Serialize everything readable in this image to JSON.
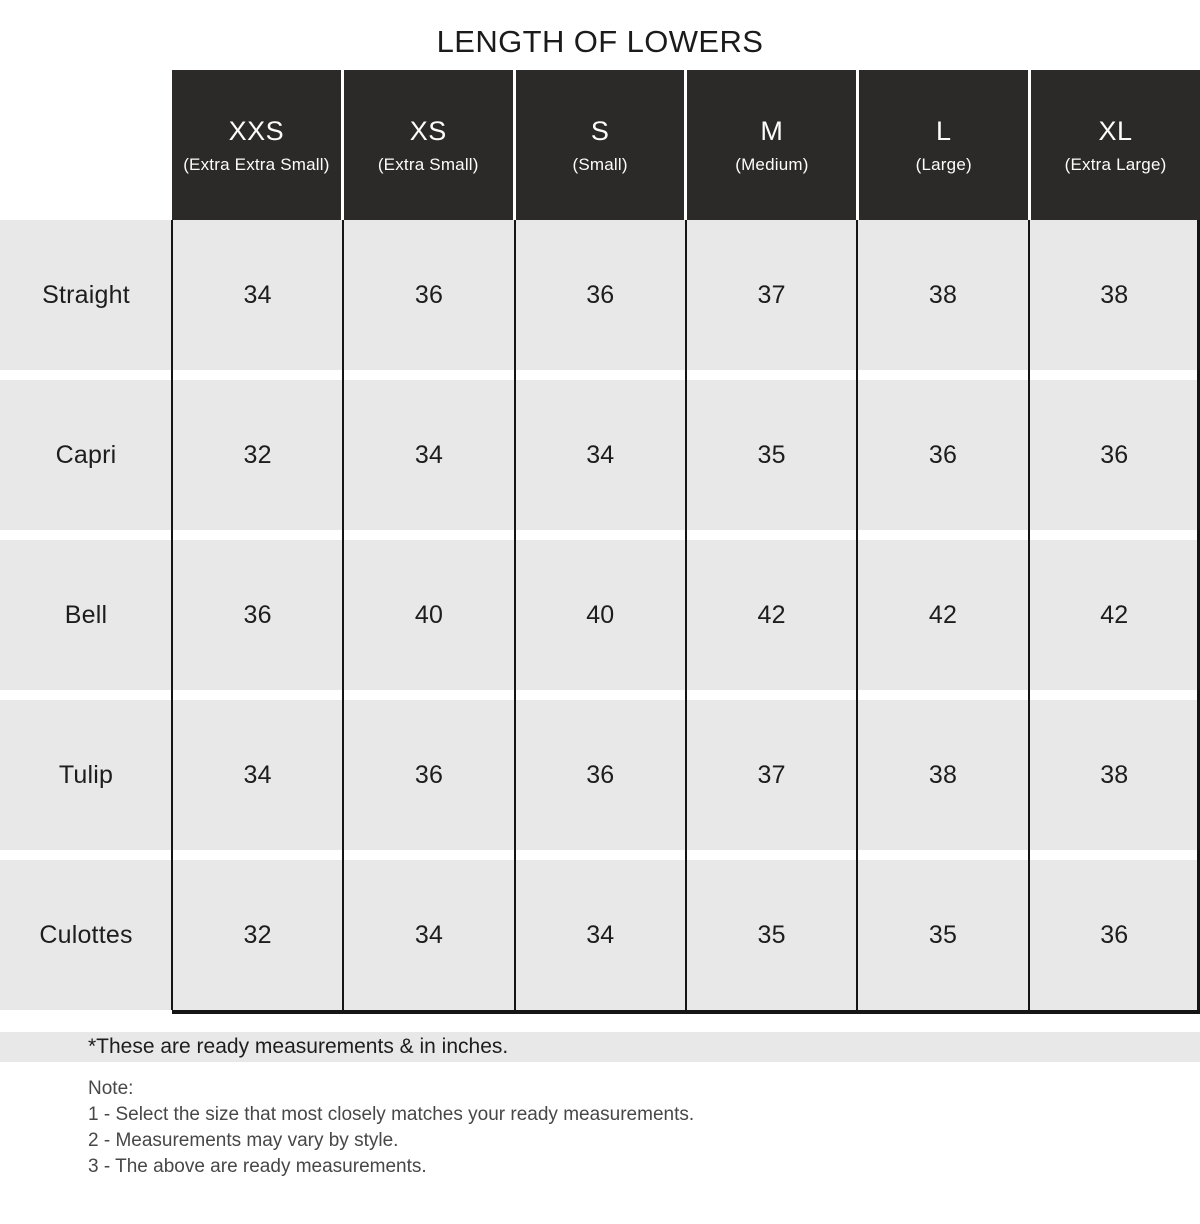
{
  "title": "LENGTH OF LOWERS",
  "colors": {
    "header_bg": "#2b2a29",
    "header_text": "#fcfcfc",
    "row_bg": "#e9e8e8",
    "grid_line": "#151515",
    "note_text": "#474747"
  },
  "columns": [
    {
      "size": "XXS",
      "label": "(Extra Extra Small)"
    },
    {
      "size": "XS",
      "label": "(Extra Small)"
    },
    {
      "size": "S",
      "label": "(Small)"
    },
    {
      "size": "M",
      "label": "(Medium)"
    },
    {
      "size": "L",
      "label": "(Large)"
    },
    {
      "size": "XL",
      "label": "(Extra Large)"
    }
  ],
  "rows": [
    {
      "style": "Straight",
      "values": [
        "34",
        "36",
        "36",
        "37",
        "38",
        "38"
      ]
    },
    {
      "style": "Capri",
      "values": [
        "32",
        "34",
        "34",
        "35",
        "36",
        "36"
      ]
    },
    {
      "style": "Bell",
      "values": [
        "36",
        "40",
        "40",
        "42",
        "42",
        "42"
      ]
    },
    {
      "style": "Tulip",
      "values": [
        "34",
        "36",
        "36",
        "37",
        "38",
        "38"
      ]
    },
    {
      "style": "Culottes",
      "values": [
        "32",
        "34",
        "34",
        "35",
        "35",
        "36"
      ]
    }
  ],
  "footnote": "*These are ready measurements & in inches.",
  "note": {
    "heading": "Note:",
    "items": [
      "1 - Select the size that most closely matches your ready measurements.",
      "2 - Measurements may vary by style.",
      "3 - The above are ready measurements."
    ]
  },
  "chart_data": {
    "type": "table",
    "title": "LENGTH OF LOWERS",
    "units": "inches",
    "column_headers": [
      "XXS (Extra Extra Small)",
      "XS (Extra Small)",
      "S (Small)",
      "M (Medium)",
      "L (Large)",
      "XL (Extra Large)"
    ],
    "row_headers": [
      "Straight",
      "Capri",
      "Bell",
      "Tulip",
      "Culottes"
    ],
    "values": [
      [
        34,
        36,
        36,
        37,
        38,
        38
      ],
      [
        32,
        34,
        34,
        35,
        36,
        36
      ],
      [
        36,
        40,
        40,
        42,
        42,
        42
      ],
      [
        34,
        36,
        36,
        37,
        38,
        38
      ],
      [
        32,
        34,
        34,
        35,
        35,
        36
      ]
    ]
  }
}
